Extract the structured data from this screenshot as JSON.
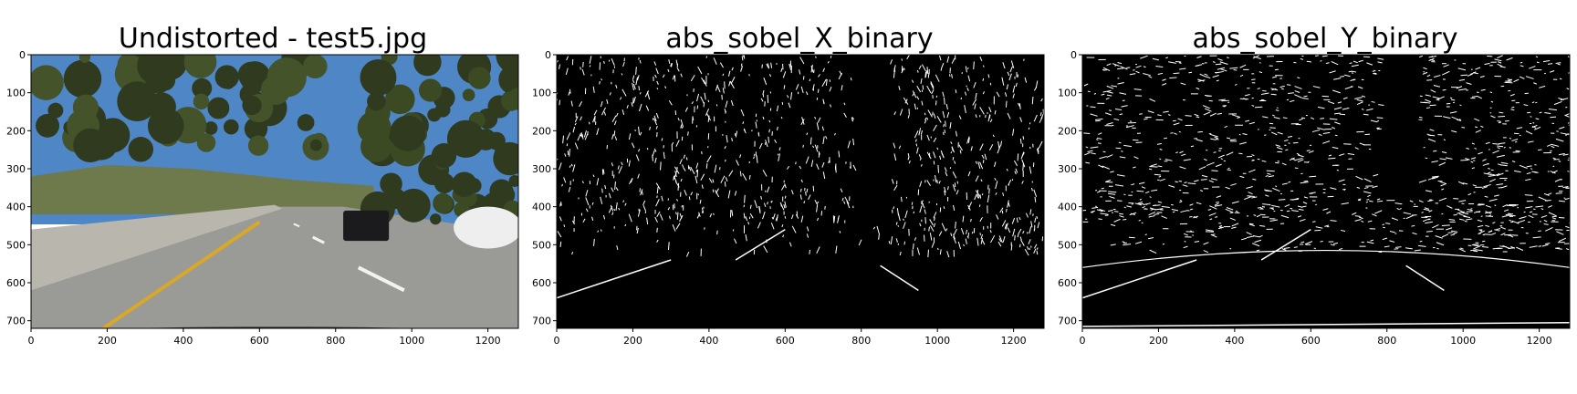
{
  "chart_data": [
    {
      "type": "image",
      "title": "Undistorted - test5.jpg",
      "xlim": [
        0,
        1280
      ],
      "ylim": [
        0,
        720
      ],
      "x_ticks": [
        0,
        200,
        400,
        600,
        800,
        1000,
        1200
      ],
      "y_ticks": [
        0,
        100,
        200,
        300,
        400,
        500,
        600,
        700
      ],
      "content": "color-photo"
    },
    {
      "type": "image",
      "title": "abs_sobel_X_binary",
      "xlim": [
        0,
        1280
      ],
      "ylim": [
        0,
        720
      ],
      "x_ticks": [
        0,
        200,
        400,
        600,
        800,
        1000,
        1200
      ],
      "y_ticks": [
        0,
        100,
        200,
        300,
        400,
        500,
        600,
        700
      ],
      "content": "binary-edges"
    },
    {
      "type": "image",
      "title": "abs_sobel_Y_binary",
      "xlim": [
        0,
        1280
      ],
      "ylim": [
        0,
        720
      ],
      "x_ticks": [
        0,
        200,
        400,
        600,
        800,
        1000,
        1200
      ],
      "y_ticks": [
        0,
        100,
        200,
        300,
        400,
        500,
        600,
        700
      ],
      "content": "binary-edges"
    }
  ],
  "colors": {
    "sky": "#4f86c6",
    "tree": "#2f3a1e",
    "road": "#9a9a96",
    "lane_yellow": "#d9a826",
    "lane_white": "#f2f2f2",
    "barrier": "#b9b6ad",
    "binary_bg": "#000000",
    "binary_fg": "#ffffff"
  }
}
